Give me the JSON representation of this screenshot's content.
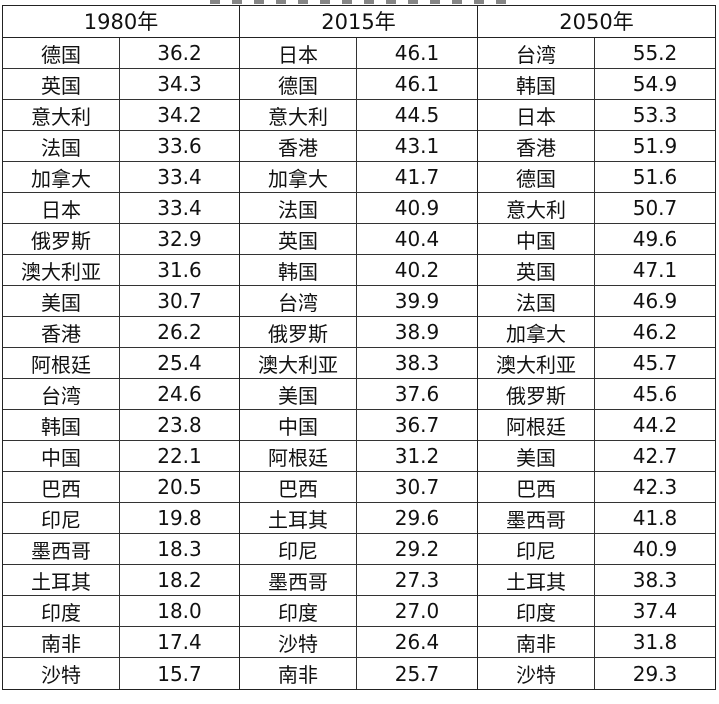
{
  "tables": [
    {
      "year": "1980年",
      "rows": [
        {
          "name": "德国",
          "value": "36.2"
        },
        {
          "name": "英国",
          "value": "34.3"
        },
        {
          "name": "意大利",
          "value": "34.2"
        },
        {
          "name": "法国",
          "value": "33.6"
        },
        {
          "name": "加拿大",
          "value": "33.4"
        },
        {
          "name": "日本",
          "value": "33.4"
        },
        {
          "name": "俄罗斯",
          "value": "32.9"
        },
        {
          "name": "澳大利亚",
          "value": "31.6"
        },
        {
          "name": "美国",
          "value": "30.7"
        },
        {
          "name": "香港",
          "value": "26.2"
        },
        {
          "name": "阿根廷",
          "value": "25.4"
        },
        {
          "name": "台湾",
          "value": "24.6"
        },
        {
          "name": "韩国",
          "value": "23.8"
        },
        {
          "name": "中国",
          "value": "22.1"
        },
        {
          "name": "巴西",
          "value": "20.5"
        },
        {
          "name": "印尼",
          "value": "19.8"
        },
        {
          "name": "墨西哥",
          "value": "18.3"
        },
        {
          "name": "土耳其",
          "value": "18.2"
        },
        {
          "name": "印度",
          "value": "18.0"
        },
        {
          "name": "南非",
          "value": "17.4"
        },
        {
          "name": "沙特",
          "value": "15.7"
        }
      ]
    },
    {
      "year": "2015年",
      "rows": [
        {
          "name": "日本",
          "value": "46.1"
        },
        {
          "name": "德国",
          "value": "46.1"
        },
        {
          "name": "意大利",
          "value": "44.5"
        },
        {
          "name": "香港",
          "value": "43.1"
        },
        {
          "name": "加拿大",
          "value": "41.7"
        },
        {
          "name": "法国",
          "value": "40.9"
        },
        {
          "name": "英国",
          "value": "40.4"
        },
        {
          "name": "韩国",
          "value": "40.2"
        },
        {
          "name": "台湾",
          "value": "39.9"
        },
        {
          "name": "俄罗斯",
          "value": "38.9"
        },
        {
          "name": "澳大利亚",
          "value": "38.3"
        },
        {
          "name": "美国",
          "value": "37.6"
        },
        {
          "name": "中国",
          "value": "36.7"
        },
        {
          "name": "阿根廷",
          "value": "31.2"
        },
        {
          "name": "巴西",
          "value": "30.7"
        },
        {
          "name": "土耳其",
          "value": "29.6"
        },
        {
          "name": "印尼",
          "value": "29.2"
        },
        {
          "name": "墨西哥",
          "value": "27.3"
        },
        {
          "name": "印度",
          "value": "27.0"
        },
        {
          "name": "沙特",
          "value": "26.4"
        },
        {
          "name": "南非",
          "value": "25.7"
        }
      ]
    },
    {
      "year": "2050年",
      "rows": [
        {
          "name": "台湾",
          "value": "55.2"
        },
        {
          "name": "韩国",
          "value": "54.9"
        },
        {
          "name": "日本",
          "value": "53.3"
        },
        {
          "name": "香港",
          "value": "51.9"
        },
        {
          "name": "德国",
          "value": "51.6"
        },
        {
          "name": "意大利",
          "value": "50.7"
        },
        {
          "name": "中国",
          "value": "49.6"
        },
        {
          "name": "英国",
          "value": "47.1"
        },
        {
          "name": "法国",
          "value": "46.9"
        },
        {
          "name": "加拿大",
          "value": "46.2"
        },
        {
          "name": "澳大利亚",
          "value": "45.7"
        },
        {
          "name": "俄罗斯",
          "value": "45.6"
        },
        {
          "name": "阿根廷",
          "value": "44.2"
        },
        {
          "name": "美国",
          "value": "42.7"
        },
        {
          "name": "巴西",
          "value": "42.3"
        },
        {
          "name": "墨西哥",
          "value": "41.8"
        },
        {
          "name": "印尼",
          "value": "40.9"
        },
        {
          "name": "土耳其",
          "value": "38.3"
        },
        {
          "name": "印度",
          "value": "37.4"
        },
        {
          "name": "南非",
          "value": "31.8"
        },
        {
          "name": "沙特",
          "value": "29.3"
        }
      ]
    }
  ]
}
